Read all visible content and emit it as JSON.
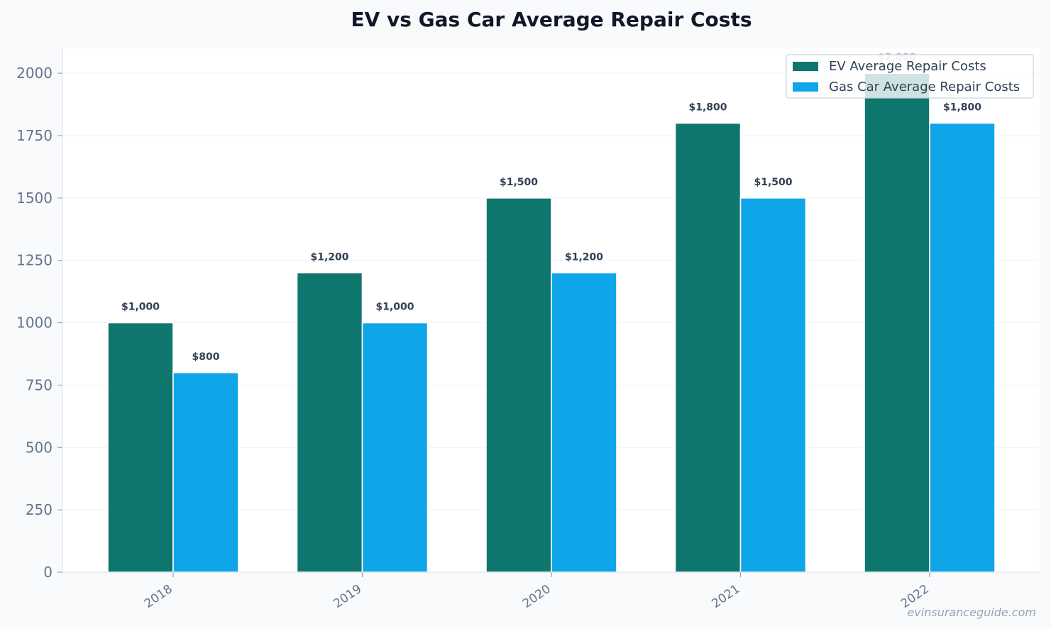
{
  "watermark": "evinsuranceguide.com",
  "chart_data": {
    "type": "bar",
    "title": "EV vs Gas Car Average Repair Costs",
    "xlabel": "",
    "ylabel": "",
    "categories": [
      "2018",
      "2019",
      "2020",
      "2021",
      "2022"
    ],
    "series": [
      {
        "name": "EV Average Repair Costs",
        "color": "#0f766e",
        "values": [
          1000,
          1200,
          1500,
          1800,
          2000
        ],
        "labels": [
          "$1,000",
          "$1,200",
          "$1,500",
          "$1,800",
          "$2,000"
        ]
      },
      {
        "name": "Gas Car Average Repair Costs",
        "color": "#0ea5e9",
        "values": [
          800,
          1000,
          1200,
          1500,
          1800
        ],
        "labels": [
          "$800",
          "$1,000",
          "$1,200",
          "$1,500",
          "$1,800"
        ]
      }
    ],
    "ylim": [
      0,
      2100
    ],
    "yticks": [
      0,
      250,
      500,
      750,
      1000,
      1250,
      1500,
      1750,
      2000
    ],
    "grid": true,
    "legend_position": "top-right"
  }
}
